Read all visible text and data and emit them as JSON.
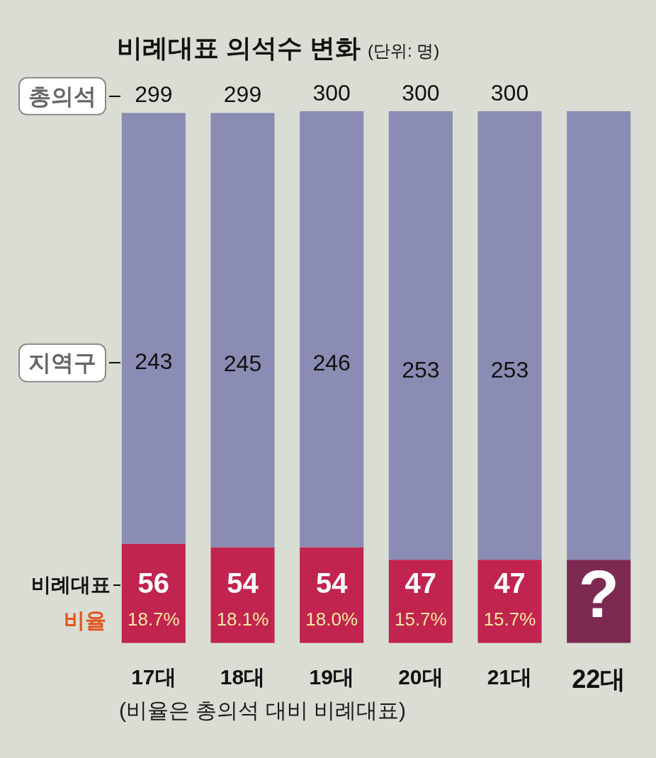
{
  "chart_data": {
    "type": "bar",
    "title": "비례대표 의석수 변화",
    "subtitle": "(단위: 명)",
    "categories": [
      "17대",
      "18대",
      "19대",
      "20대",
      "21대",
      "22대"
    ],
    "stacked": true,
    "tick_labels": "x",
    "series": [
      {
        "name": "비례대표",
        "colors": [
          "#c1244f",
          "#c1244f",
          "#c1244f",
          "#c1244f",
          "#c1244f",
          "#7d2a52"
        ],
        "values": [
          56,
          54,
          54,
          47,
          47,
          47
        ],
        "value_labels": [
          "56",
          "54",
          "54",
          "47",
          "47",
          "?"
        ]
      },
      {
        "name": "지역구",
        "color": "#8a8cb4",
        "values": [
          243,
          245,
          246,
          253,
          253,
          253
        ],
        "value_labels": [
          "243",
          "245",
          "246",
          "253",
          "253",
          null
        ]
      }
    ],
    "totals": [
      "299",
      "299",
      "300",
      "300",
      "300",
      null
    ],
    "annotations": [
      "총의석",
      "비율",
      "18.7%",
      "18.1%",
      "18.0%",
      "15.7%",
      "15.7%",
      "(비율은 총의석 대비 비례대표)"
    ]
  }
}
